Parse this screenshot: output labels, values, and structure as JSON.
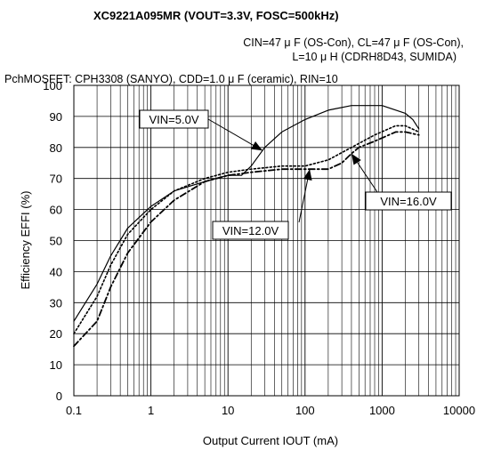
{
  "chart_data": {
    "type": "line",
    "title": "XC9221A095MR (VOUT=3.3V, FOSC=500kHz)",
    "conditions": [
      "CIN=47 μ F (OS-Con), CL=47 μ F (OS-Con),",
      "L=10 μ H (CDRH8D43, SUMIDA)",
      "PchMOSFET:  CPH3308  (SANYO),  CDD=1.0 μ F  (ceramic),  RIN=10"
    ],
    "xlabel": "Output Current   IOUT (mA)",
    "ylabel": "Efficiency    EFFI (%)",
    "xscale": "log",
    "xlim": [
      0.1,
      10000
    ],
    "ylim": [
      0,
      100
    ],
    "xticks": [
      "0.1",
      "1",
      "10",
      "100",
      "1000",
      "10000"
    ],
    "yticks": [
      "0",
      "10",
      "20",
      "30",
      "40",
      "50",
      "60",
      "70",
      "80",
      "90",
      "100"
    ],
    "grid": true,
    "series": [
      {
        "name": "VIN=5.0V",
        "style": "solid",
        "points": [
          [
            0.1,
            24
          ],
          [
            0.2,
            36
          ],
          [
            0.3,
            45
          ],
          [
            0.5,
            54
          ],
          [
            1,
            61
          ],
          [
            2,
            66
          ],
          [
            5,
            69
          ],
          [
            10,
            71
          ],
          [
            15,
            71
          ],
          [
            20,
            74
          ],
          [
            30,
            80
          ],
          [
            50,
            85
          ],
          [
            100,
            89
          ],
          [
            200,
            92
          ],
          [
            400,
            93.5
          ],
          [
            1000,
            93.5
          ],
          [
            2000,
            91
          ],
          [
            2500,
            89
          ],
          [
            3000,
            86
          ]
        ]
      },
      {
        "name": "VIN=12.0V",
        "style": "dotted",
        "points": [
          [
            0.1,
            20
          ],
          [
            0.2,
            32
          ],
          [
            0.3,
            42
          ],
          [
            0.5,
            52
          ],
          [
            1,
            60
          ],
          [
            2,
            66
          ],
          [
            5,
            70
          ],
          [
            10,
            72
          ],
          [
            20,
            73
          ],
          [
            50,
            74
          ],
          [
            100,
            74
          ],
          [
            200,
            76
          ],
          [
            400,
            80
          ],
          [
            800,
            84
          ],
          [
            1500,
            87
          ],
          [
            2000,
            87
          ],
          [
            3000,
            85
          ]
        ]
      },
      {
        "name": "VIN=16.0V",
        "style": "dash-dot",
        "points": [
          [
            0.1,
            16
          ],
          [
            0.2,
            24
          ],
          [
            0.3,
            35
          ],
          [
            0.5,
            46
          ],
          [
            1,
            56
          ],
          [
            2,
            63
          ],
          [
            5,
            69
          ],
          [
            10,
            71
          ],
          [
            20,
            72
          ],
          [
            50,
            73
          ],
          [
            100,
            73
          ],
          [
            200,
            73
          ],
          [
            300,
            75
          ],
          [
            400,
            78
          ],
          [
            500,
            80
          ],
          [
            800,
            82
          ],
          [
            1500,
            85
          ],
          [
            2000,
            85
          ],
          [
            3000,
            84
          ]
        ]
      }
    ],
    "annotations": [
      {
        "text": "VIN=5.0V",
        "points_to": [
          28,
          79
        ]
      },
      {
        "text": "VIN=12.0V",
        "points_to": [
          115,
          73
        ]
      },
      {
        "text": "VIN=16.0V",
        "points_to": [
          400,
          78
        ]
      }
    ]
  }
}
